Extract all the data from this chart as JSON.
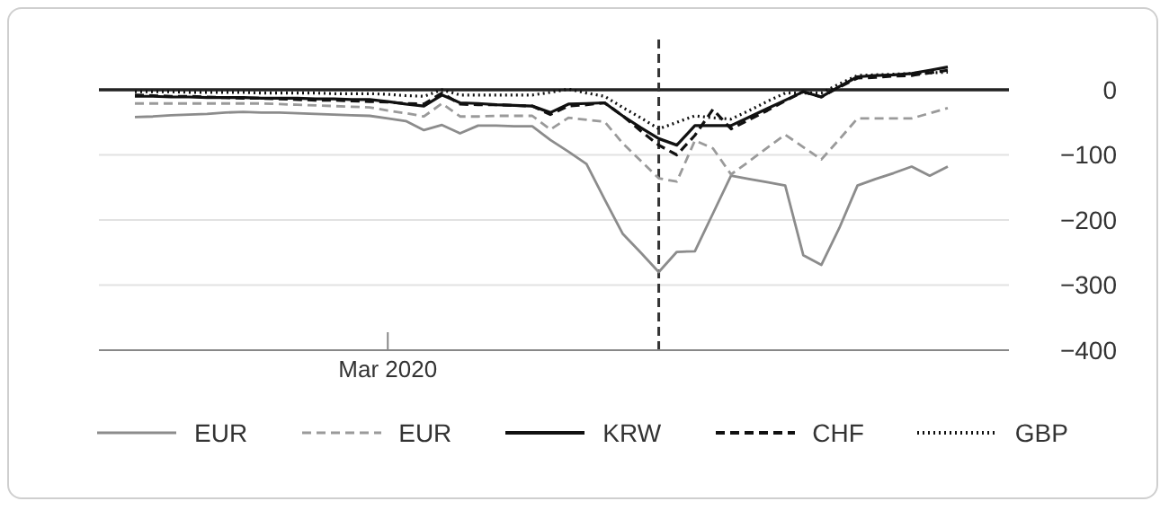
{
  "chart_data": {
    "type": "line",
    "categories": [
      null,
      null,
      null,
      null,
      null,
      null,
      null,
      null,
      null,
      null,
      null,
      null,
      null,
      null,
      "Mar 2020",
      null,
      null,
      null,
      null,
      null,
      null,
      null,
      null,
      null,
      null,
      null,
      null,
      null,
      null,
      null,
      null,
      null,
      null,
      null,
      null,
      null,
      null,
      null,
      null,
      null,
      null,
      null,
      null,
      null,
      null,
      null
    ],
    "series": [
      {
        "name": "EUR",
        "color": "#8c8c8c",
        "line_style": "solid",
        "values": [
          -42,
          -41,
          -39,
          -38,
          -37,
          -35,
          -34,
          -35,
          -35,
          -36,
          -37,
          -38,
          -39,
          -40,
          -44,
          -48,
          -62,
          -54,
          -67,
          -55,
          -55,
          -56,
          -56,
          -77,
          -95,
          -114,
          -168,
          -221,
          -250,
          -280,
          -249,
          -248,
          -190,
          -132,
          -137,
          -142,
          -147,
          -254,
          -269,
          -212,
          -147,
          -137,
          -128,
          -118,
          -132,
          -118
        ]
      },
      {
        "name": "EUR",
        "color": "#9a9a9a",
        "line_style": "dashed",
        "values": [
          -21,
          -21,
          -21,
          -21,
          -21,
          -21,
          -21,
          -21,
          -22,
          -23,
          -24,
          -25,
          -26,
          -27,
          -32,
          -36,
          -41,
          -21,
          -41,
          -41,
          -40,
          -40,
          -40,
          -61,
          -43,
          -46,
          -49,
          -82,
          -109,
          -136,
          -141,
          -78,
          -90,
          -130,
          -110,
          -89,
          -69,
          -88,
          -107,
          -76,
          -44,
          -44,
          -44,
          -44,
          -36,
          -28
        ]
      },
      {
        "name": "KRW",
        "color": "#111111",
        "line_style": "solid",
        "values": [
          -10,
          -10,
          -11,
          -11,
          -12,
          -12,
          -12,
          -13,
          -13,
          -13,
          -14,
          -14,
          -15,
          -15,
          -18,
          -22,
          -25,
          -8,
          -20,
          -21,
          -23,
          -24,
          -25,
          -35,
          -22,
          -21,
          -20,
          -40,
          -58,
          -75,
          -85,
          -55,
          -55,
          -55,
          -42,
          -29,
          -16,
          -3,
          -11,
          5,
          20,
          22,
          23,
          25,
          30,
          35
        ]
      },
      {
        "name": "CHF",
        "color": "#111111",
        "line_style": "dashed",
        "values": [
          -8,
          -9,
          -10,
          -10,
          -11,
          -12,
          -13,
          -13,
          -14,
          -15,
          -16,
          -16,
          -17,
          -18,
          -19,
          -21,
          -22,
          -5,
          -22,
          -23,
          -23,
          -24,
          -25,
          -38,
          -25,
          -23,
          -20,
          -40,
          -63,
          -85,
          -100,
          -70,
          -30,
          -60,
          -46,
          -32,
          -17,
          -3,
          -11,
          4,
          18,
          19,
          21,
          22,
          26,
          30
        ]
      },
      {
        "name": "GBP",
        "color": "#111111",
        "line_style": "dotted",
        "values": [
          -3,
          -3,
          -3,
          -4,
          -4,
          -4,
          -4,
          -5,
          -5,
          -5,
          -5,
          -6,
          -6,
          -6,
          -7,
          -9,
          -10,
          0,
          -8,
          -8,
          -8,
          -8,
          -8,
          -4,
          1,
          -5,
          -10,
          -27,
          -43,
          -60,
          -50,
          -40,
          -43,
          -45,
          -32,
          -18,
          -5,
          -5,
          -5,
          9,
          22,
          23,
          24,
          25,
          26,
          27
        ]
      }
    ],
    "ylim": [
      -400,
      80
    ],
    "yticks": [
      {
        "value": 0,
        "label": "0"
      },
      {
        "value": -100,
        "label": "−100"
      },
      {
        "value": -200,
        "label": "−200"
      },
      {
        "value": -300,
        "label": "−300"
      },
      {
        "value": -400,
        "label": "−400"
      }
    ],
    "ref_lines": [
      {
        "axis": "y",
        "value": 0,
        "color": "#222222",
        "line_style": "solid"
      }
    ],
    "grid": "y",
    "legend": "bottom",
    "marker": "none"
  }
}
